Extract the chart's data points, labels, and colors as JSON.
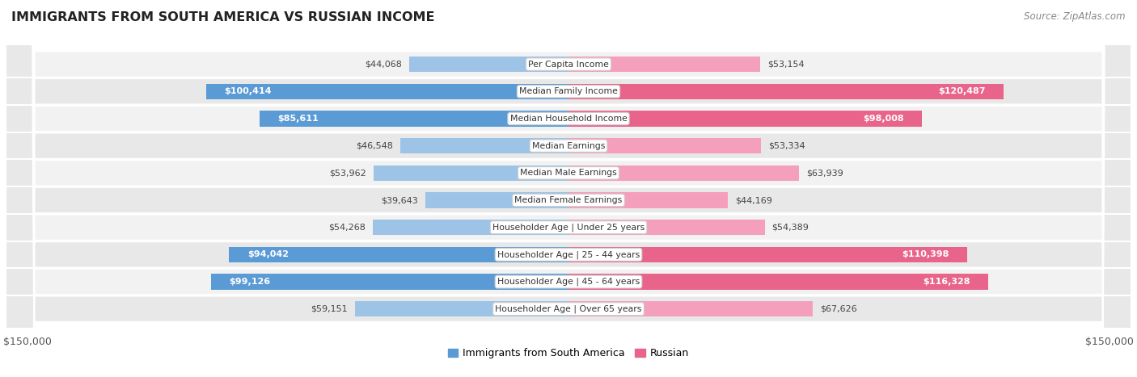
{
  "title": "IMMIGRANTS FROM SOUTH AMERICA VS RUSSIAN INCOME",
  "source": "Source: ZipAtlas.com",
  "categories": [
    "Per Capita Income",
    "Median Family Income",
    "Median Household Income",
    "Median Earnings",
    "Median Male Earnings",
    "Median Female Earnings",
    "Householder Age | Under 25 years",
    "Householder Age | 25 - 44 years",
    "Householder Age | 45 - 64 years",
    "Householder Age | Over 65 years"
  ],
  "south_america": [
    44068,
    100414,
    85611,
    46548,
    53962,
    39643,
    54268,
    94042,
    99126,
    59151
  ],
  "russian": [
    53154,
    120487,
    98008,
    53334,
    63939,
    44169,
    54389,
    110398,
    116328,
    67626
  ],
  "south_america_labels": [
    "$44,068",
    "$100,414",
    "$85,611",
    "$46,548",
    "$53,962",
    "$39,643",
    "$54,268",
    "$94,042",
    "$99,126",
    "$59,151"
  ],
  "russian_labels": [
    "$53,154",
    "$120,487",
    "$98,008",
    "$53,334",
    "$63,939",
    "$44,169",
    "$54,389",
    "$110,398",
    "$116,328",
    "$67,626"
  ],
  "max_val": 150000,
  "color_south_america_dark": "#5b9bd5",
  "color_south_america_light": "#9dc3e6",
  "color_russian_dark": "#e8648a",
  "color_russian_light": "#f4a0bc",
  "row_bg_light": "#f2f2f2",
  "row_bg_dark": "#e8e8e8",
  "label_inside_color": "#ffffff",
  "label_outside_color": "#444444",
  "sa_inside_threshold": 75000,
  "ru_inside_threshold": 75000,
  "legend_label_sa": "Immigrants from South America",
  "legend_label_ru": "Russian"
}
